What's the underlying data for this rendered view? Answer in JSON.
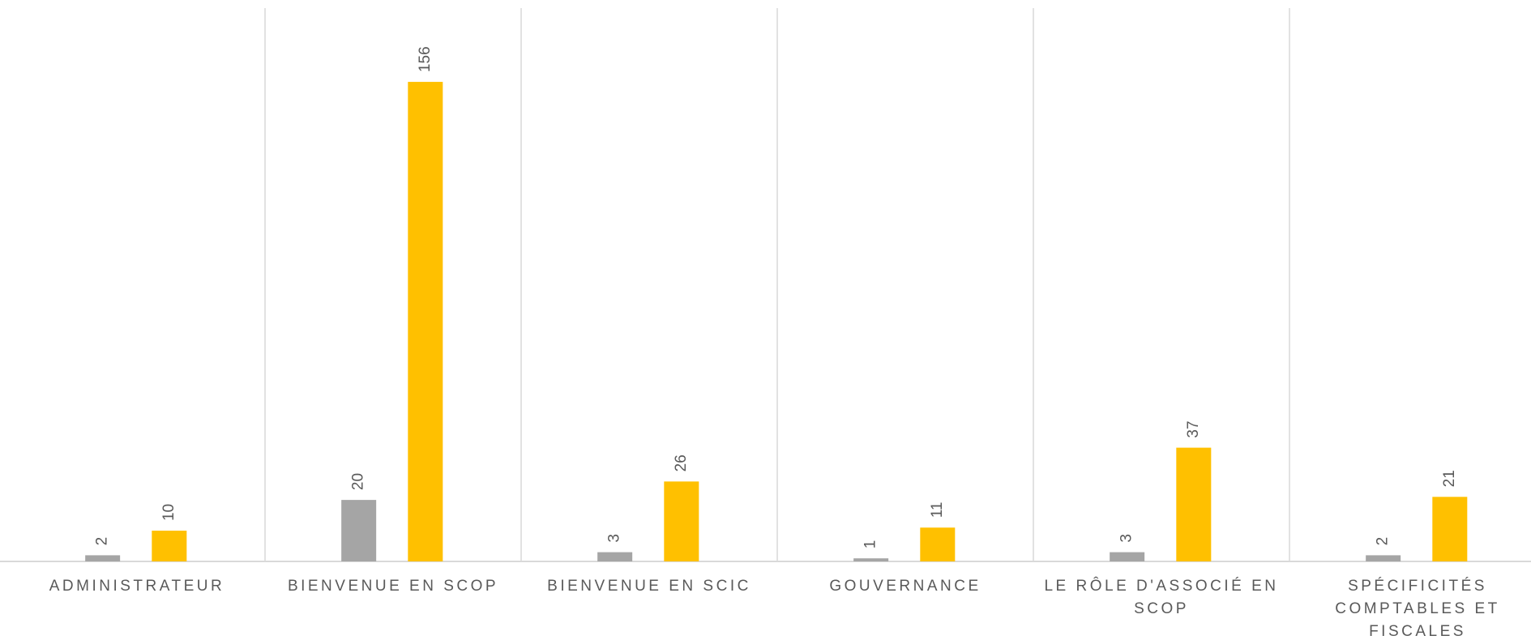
{
  "chart_data": {
    "type": "bar",
    "categories": [
      "ADMINISTRATEUR",
      "BIENVENUE EN SCOP",
      "BIENVENUE EN SCIC",
      "GOUVERNANCE",
      "LE RÔLE D'ASSOCIÉ EN SCOP",
      "SPÉCIFICITÉS COMPTABLES ET FISCALES"
    ],
    "series": [
      {
        "color": "#a5a5a5",
        "values": [
          2,
          20,
          3,
          1,
          3,
          2
        ]
      },
      {
        "color": "#ffc000",
        "values": [
          10,
          156,
          26,
          11,
          37,
          21
        ]
      }
    ],
    "ylim": [
      0,
      180
    ]
  }
}
